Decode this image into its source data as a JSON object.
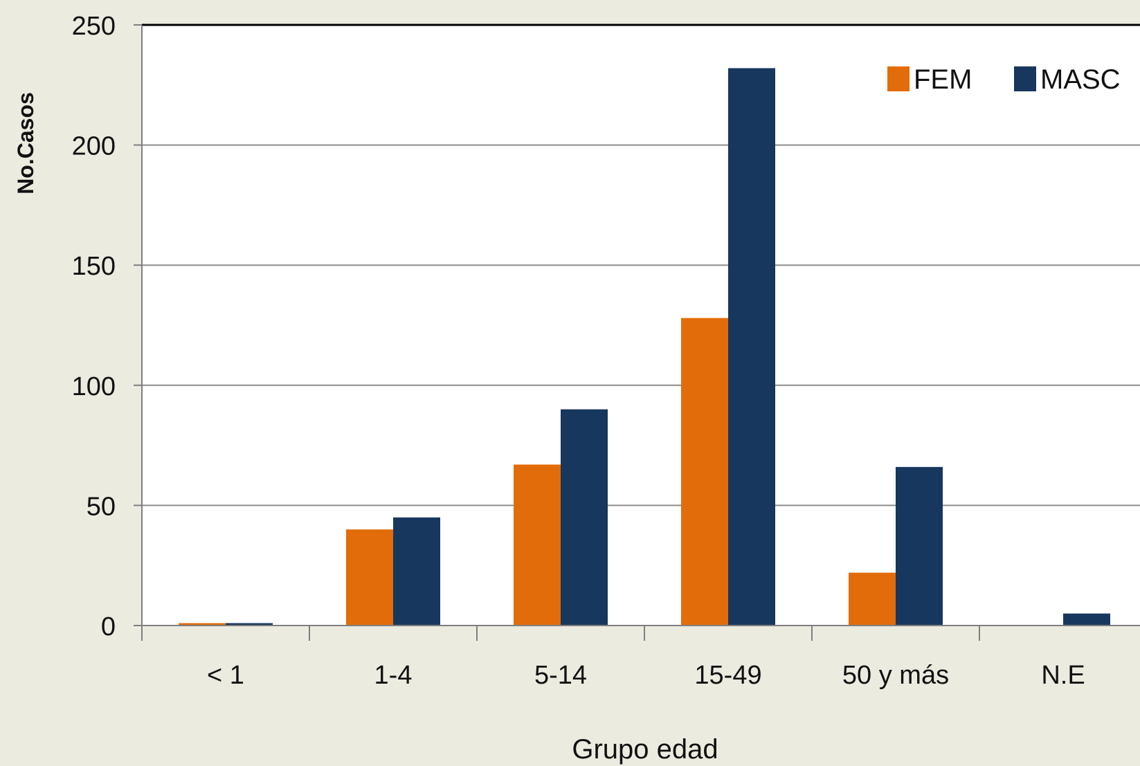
{
  "chart_data": {
    "type": "bar",
    "title": "",
    "xlabel": "Grupo edad",
    "ylabel": "No.Casos",
    "categories": [
      "< 1",
      "1-4",
      "5-14",
      "15-49",
      "50 y más",
      "N.E"
    ],
    "series": [
      {
        "name": "FEM",
        "color": "#e36c0a",
        "values": [
          1,
          40,
          67,
          128,
          22,
          0
        ]
      },
      {
        "name": "MASC",
        "color": "#17375e",
        "values": [
          1,
          45,
          90,
          232,
          66,
          5
        ]
      }
    ],
    "ylim": [
      0,
      250
    ],
    "yticks": [
      0,
      50,
      100,
      150,
      200,
      250
    ],
    "grid": true,
    "legend_position": "top-right"
  }
}
